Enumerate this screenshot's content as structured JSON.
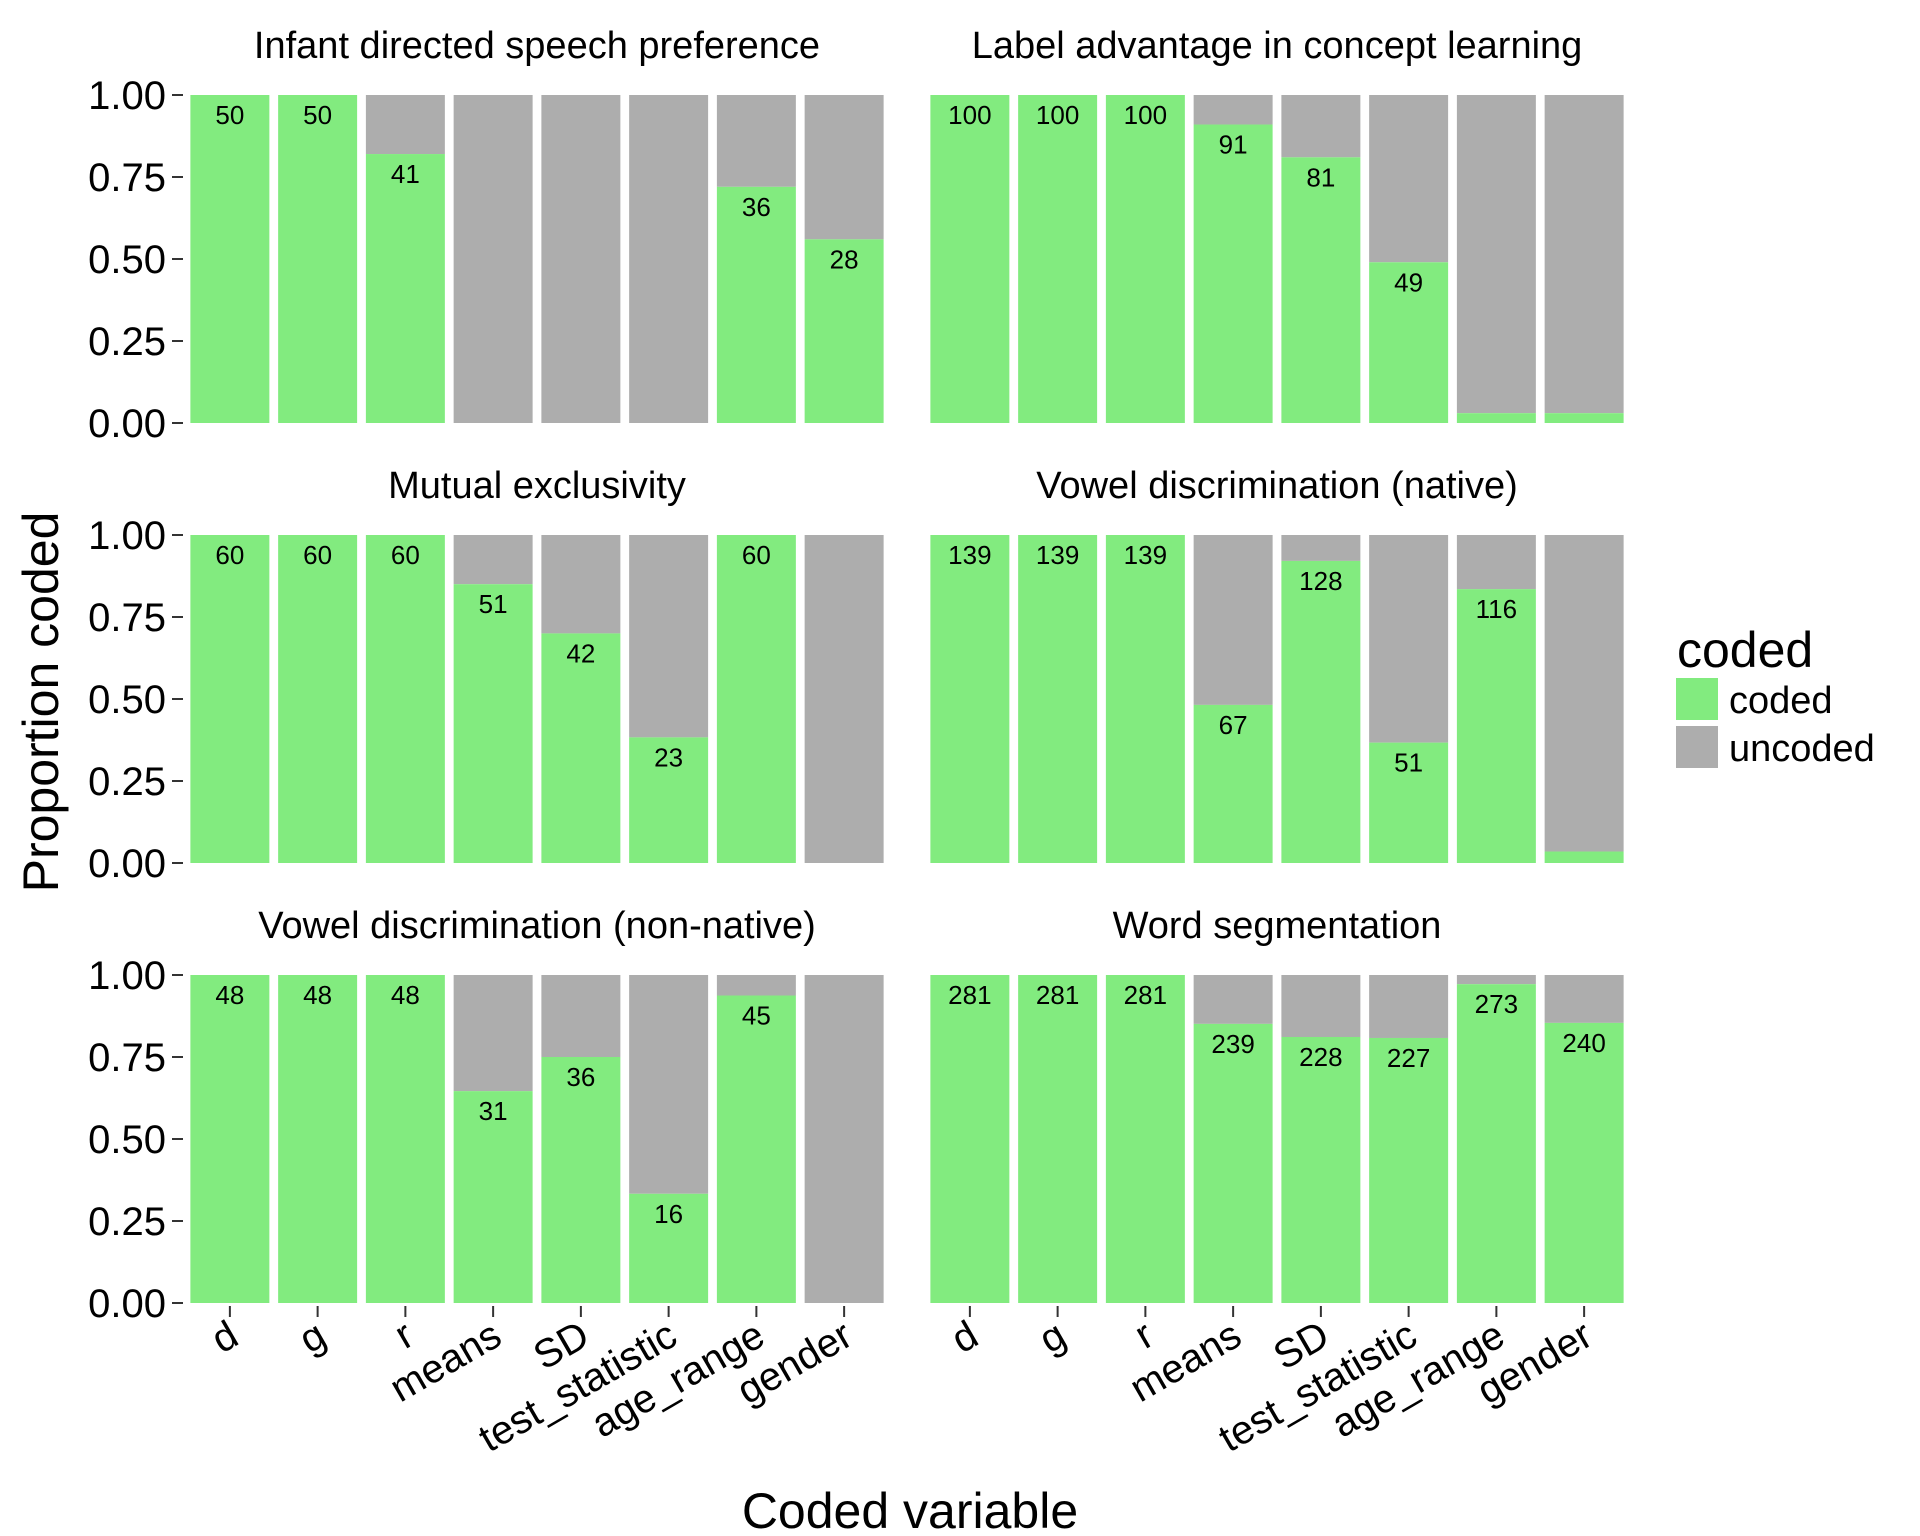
{
  "chart_data": {
    "type": "bar",
    "stacked": true,
    "xlabel": "Coded variable",
    "ylabel": "Proportion coded",
    "ylim": [
      0,
      1
    ],
    "yticks": [
      "0.00",
      "0.25",
      "0.50",
      "0.75",
      "1.00"
    ],
    "categories": [
      "d",
      "g",
      "r",
      "means",
      "SD",
      "test_statistic",
      "age_range",
      "gender"
    ],
    "legend": {
      "title": "coded",
      "position": "right",
      "entries": [
        {
          "name": "coded",
          "color": "#82EB7F"
        },
        {
          "name": "uncoded",
          "color": "#ADADAD"
        }
      ]
    },
    "facets": [
      {
        "title": "Infant directed speech preference",
        "proportions": [
          1.0,
          1.0,
          0.82,
          0.0,
          0.0,
          0.0,
          0.72,
          0.56
        ],
        "counts": [
          "50",
          "50",
          "41",
          "",
          "",
          "",
          "36",
          "28"
        ]
      },
      {
        "title": "Label advantage in concept learning",
        "proportions": [
          1.0,
          1.0,
          1.0,
          0.91,
          0.81,
          0.49,
          0.03,
          0.03
        ],
        "counts": [
          "100",
          "100",
          "100",
          "91",
          "81",
          "49",
          "",
          ""
        ]
      },
      {
        "title": "Mutual exclusivity",
        "proportions": [
          1.0,
          1.0,
          1.0,
          0.85,
          0.7,
          0.383,
          1.0,
          0.0
        ],
        "counts": [
          "60",
          "60",
          "60",
          "51",
          "42",
          "23",
          "60",
          ""
        ]
      },
      {
        "title": "Vowel discrimination (native)",
        "proportions": [
          1.0,
          1.0,
          1.0,
          0.482,
          0.921,
          0.367,
          0.835,
          0.035
        ],
        "counts": [
          "139",
          "139",
          "139",
          "67",
          "128",
          "51",
          "116",
          ""
        ]
      },
      {
        "title": "Vowel discrimination (non-native)",
        "proportions": [
          1.0,
          1.0,
          1.0,
          0.646,
          0.75,
          0.333,
          0.9375,
          0.0
        ],
        "counts": [
          "48",
          "48",
          "48",
          "31",
          "36",
          "16",
          "45",
          ""
        ]
      },
      {
        "title": "Word segmentation",
        "proportions": [
          1.0,
          1.0,
          1.0,
          0.851,
          0.811,
          0.808,
          0.972,
          0.854
        ],
        "counts": [
          "281",
          "281",
          "281",
          "239",
          "228",
          "227",
          "273",
          "240"
        ]
      }
    ]
  }
}
